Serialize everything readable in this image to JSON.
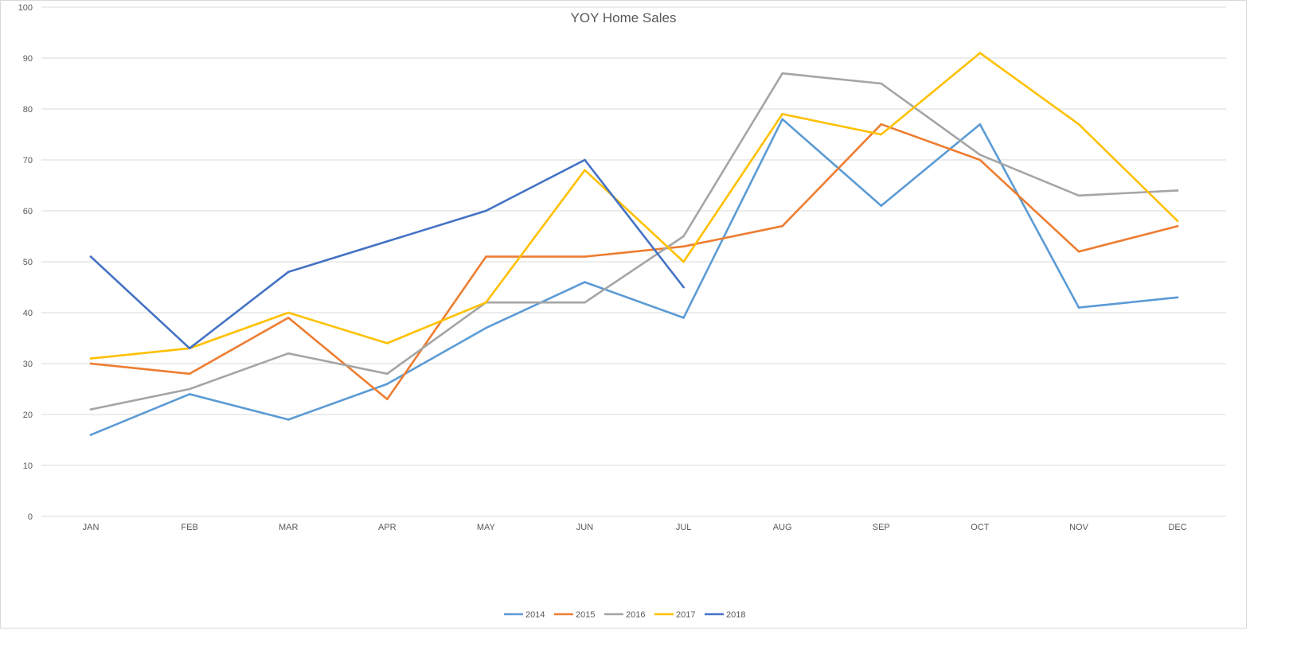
{
  "chart_data": {
    "type": "line",
    "title": "YOY Home Sales",
    "xlabel": "",
    "ylabel": "",
    "categories": [
      "JAN",
      "FEB",
      "MAR",
      "APR",
      "MAY",
      "JUN",
      "JUL",
      "AUG",
      "SEP",
      "OCT",
      "NOV",
      "DEC"
    ],
    "ylim": [
      0,
      100
    ],
    "yticks": [
      0,
      10,
      20,
      30,
      40,
      50,
      60,
      70,
      80,
      90,
      100
    ],
    "grid": true,
    "legend_position": "bottom",
    "series": [
      {
        "name": "2014",
        "color": "#5b9bd5",
        "values": [
          16,
          24,
          19,
          26,
          37,
          46,
          39,
          78,
          61,
          77,
          41,
          43
        ]
      },
      {
        "name": "2015",
        "color": "#ed7d31",
        "values": [
          30,
          28,
          39,
          23,
          51,
          51,
          53,
          57,
          77,
          70,
          52,
          57
        ]
      },
      {
        "name": "2016",
        "color": "#a5a5a5",
        "values": [
          21,
          25,
          32,
          28,
          42,
          42,
          55,
          87,
          85,
          71,
          63,
          64
        ]
      },
      {
        "name": "2017",
        "color": "#ffc000",
        "values": [
          31,
          33,
          40,
          34,
          42,
          68,
          50,
          79,
          75,
          91,
          77,
          58
        ]
      },
      {
        "name": "2018",
        "color": "#4472c4",
        "values": [
          51,
          33,
          48,
          54,
          60,
          70,
          45,
          null,
          null,
          null,
          null,
          null
        ]
      }
    ]
  }
}
